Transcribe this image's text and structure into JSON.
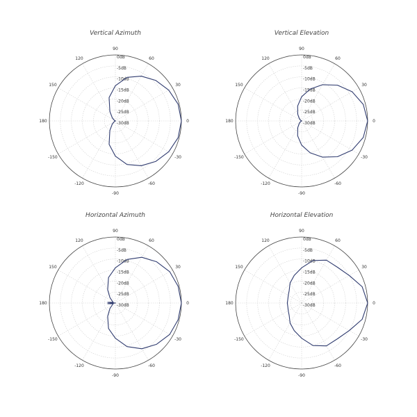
{
  "colors": {
    "trace": "#2e3a6e",
    "outer_ring": "#444444",
    "grid": "#d0d0d0"
  },
  "chart_data": [
    {
      "type": "polar-line",
      "title": "Vertical Azimuth",
      "angle_ticks": [
        "0",
        "30",
        "60",
        "90",
        "120",
        "150",
        "180",
        "-150",
        "-120",
        "-90",
        "-60",
        "-30"
      ],
      "radial_ticks": [
        "0dB",
        "-5dB",
        "-10dB",
        "-15dB",
        "-20dB",
        "-25dB",
        "-30dB"
      ],
      "rlim": [
        -30,
        0
      ],
      "series": [
        {
          "theta": [
            0,
            15,
            30,
            45,
            60,
            75,
            90,
            105,
            120,
            135,
            150,
            165,
            180,
            195,
            210,
            225,
            240,
            255,
            270,
            285,
            300,
            315,
            330,
            345,
            360
          ],
          "r": [
            0,
            -0.5,
            -2,
            -4,
            -6.5,
            -9.5,
            -14,
            -19,
            -25,
            -28,
            -29.5,
            -30,
            -30,
            -30,
            -29.5,
            -28,
            -25,
            -19,
            -14,
            -9.5,
            -6.5,
            -4,
            -2,
            -0.5,
            0
          ]
        }
      ]
    },
    {
      "type": "polar-line",
      "title": "Vertical Elevation",
      "angle_ticks": [
        "0",
        "30",
        "60",
        "90",
        "120",
        "150",
        "180",
        "-150",
        "-120",
        "-90",
        "-60",
        "-30"
      ],
      "radial_ticks": [
        "0dB",
        "-5dB",
        "-10dB",
        "-15dB",
        "-20dB",
        "-25dB",
        "-30dB"
      ],
      "rlim": [
        -30,
        0
      ],
      "series": [
        {
          "theta": [
            0,
            15,
            30,
            45,
            60,
            75,
            90,
            105,
            120,
            135,
            150,
            165,
            180,
            195,
            210,
            225,
            240,
            255,
            270,
            285,
            300,
            315,
            330,
            345,
            360
          ],
          "r": [
            0,
            -1,
            -3.5,
            -7,
            -11,
            -15,
            -19,
            -23,
            -26.5,
            -28.5,
            -29.5,
            -30,
            -30,
            -30,
            -29.5,
            -28.5,
            -26.5,
            -23,
            -19,
            -15,
            -11,
            -7,
            -3.5,
            -1,
            0
          ]
        }
      ]
    },
    {
      "type": "polar-line",
      "title": "Horizontal Azimuth",
      "angle_ticks": [
        "0",
        "30",
        "60",
        "90",
        "120",
        "150",
        "180",
        "-150",
        "-120",
        "-90",
        "-60",
        "-30"
      ],
      "radial_ticks": [
        "0dB",
        "-5dB",
        "-10dB",
        "-15dB",
        "-20dB",
        "-25dB",
        "-30dB"
      ],
      "rlim": [
        -30,
        0
      ],
      "series": [
        {
          "theta": [
            0,
            15,
            30,
            45,
            60,
            75,
            90,
            105,
            120,
            135,
            150,
            165,
            170,
            175,
            180,
            185,
            190,
            195,
            210,
            225,
            240,
            255,
            270,
            285,
            300,
            315,
            330,
            345,
            360
          ],
          "r": [
            0,
            -0.5,
            -1.5,
            -3.5,
            -6,
            -9.5,
            -14,
            -18,
            -23,
            -26.5,
            -28.5,
            -29,
            -28,
            -26.5,
            -30,
            -26.5,
            -28,
            -29,
            -28.5,
            -26.5,
            -23,
            -18,
            -14,
            -9.5,
            -6,
            -3.5,
            -1.5,
            -0.5,
            0
          ]
        }
      ]
    },
    {
      "type": "polar-line",
      "title": "Horizontal Elevation",
      "angle_ticks": [
        "0",
        "30",
        "60",
        "90",
        "120",
        "150",
        "180",
        "-150",
        "-120",
        "-90",
        "-60",
        "-30"
      ],
      "radial_ticks": [
        "0dB",
        "-5dB",
        "-10dB",
        "-15dB",
        "-20dB",
        "-25dB",
        "-30dB"
      ],
      "rlim": [
        -30,
        0
      ],
      "series": [
        {
          "theta": [
            0,
            15,
            30,
            45,
            60,
            75,
            90,
            105,
            120,
            135,
            150,
            165,
            180,
            195,
            210,
            225,
            240,
            255,
            270,
            285,
            300,
            315,
            330,
            345,
            360
          ],
          "r": [
            0,
            -1.5,
            -5,
            -7,
            -7.5,
            -10,
            -14,
            -17,
            -19.5,
            -22,
            -23,
            -23.5,
            -23.5,
            -23.5,
            -23,
            -22,
            -19.5,
            -17,
            -14,
            -10,
            -7.5,
            -7,
            -5,
            -1.5,
            0
          ]
        }
      ]
    }
  ]
}
